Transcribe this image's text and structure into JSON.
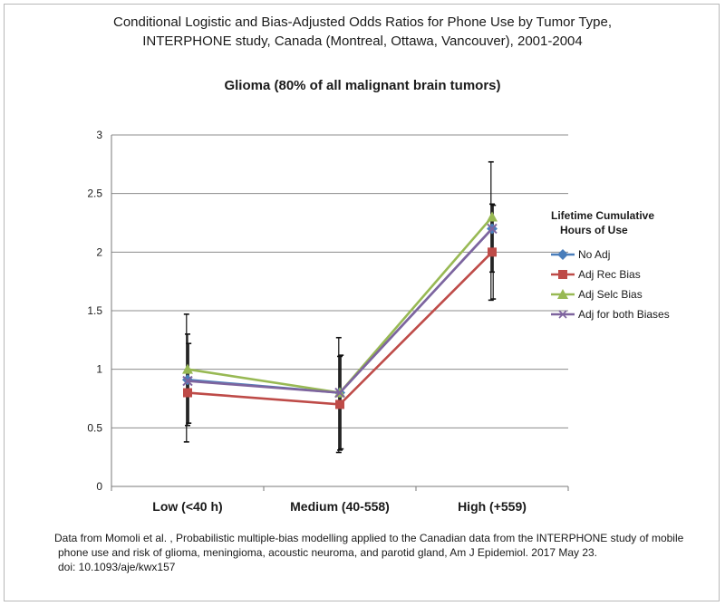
{
  "header": {
    "title_line1": "Conditional Logistic and Bias-Adjusted Odds Ratios for Phone Use by Tumor Type,",
    "title_line2": "INTERPHONE study, Canada (Montreal, Ottawa, Vancouver), 2001-2004"
  },
  "footer": {
    "line1": "Data from Momoli et al. , Probabilistic multiple-bias modelling applied to the  Canadian  data from the INTERPHONE study of mobile",
    "line2": "phone use and risk of  glioma, meningioma, acoustic neuroma, and parotid gland, Am J Epidemiol. 2017 May 23.",
    "line3": "doi: 10.1093/aje/kwx157"
  },
  "chart_data": {
    "type": "line",
    "title": "Glioma (80% of all malignant brain tumors)",
    "xlabel": "",
    "ylabel": "",
    "categories": [
      "Low (<40 h)",
      "Medium (40-558)",
      "High (+559)"
    ],
    "ylim": [
      0,
      3
    ],
    "yticks": [
      "0",
      "0.5",
      "1",
      "1.5",
      "2",
      "2.5",
      "3"
    ],
    "grid": true,
    "legend": {
      "title_line1": "Lifetime Cumulative",
      "title_line2": "Hours of Use",
      "placement": "right"
    },
    "series": [
      {
        "name": "No Adj",
        "values": [
          0.91,
          0.8,
          2.2
        ],
        "color": "#4a7ebb",
        "marker": "diamond"
      },
      {
        "name": "Adj Rec Bias",
        "values": [
          0.8,
          0.7,
          2.0
        ],
        "color": "#be4b48",
        "marker": "square"
      },
      {
        "name": "Adj Selc Bias",
        "values": [
          1.0,
          0.8,
          2.3
        ],
        "color": "#98b954",
        "marker": "triangle"
      },
      {
        "name": "Adj for both Biases",
        "values": [
          0.9,
          0.8,
          2.2
        ],
        "color": "#7e649e",
        "marker": "x"
      }
    ],
    "error_bars": [
      [
        0.38,
        1.47
      ],
      [
        0.52,
        1.3
      ],
      [
        0.54,
        1.22
      ],
      [
        0.29,
        1.27
      ],
      [
        0.31,
        1.11
      ],
      [
        0.32,
        1.12
      ],
      [
        1.59,
        2.77
      ],
      [
        1.83,
        2.41
      ],
      [
        1.6,
        2.4
      ]
    ],
    "error_bar_categories": [
      0,
      0,
      0,
      1,
      1,
      1,
      2,
      2,
      2
    ]
  }
}
